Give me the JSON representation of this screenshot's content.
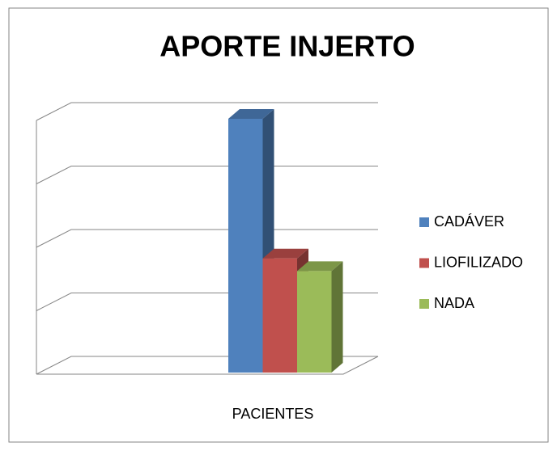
{
  "chart_data": {
    "type": "bar",
    "title": "APORTE INJERTO",
    "categories": [
      "PACIENTES"
    ],
    "series": [
      {
        "name": "CADÁVER",
        "color": "#4f81bd",
        "values": [
          4
        ]
      },
      {
        "name": "LIOFILIZADO",
        "color": "#c0504d",
        "values": [
          1.8
        ]
      },
      {
        "name": "NADA",
        "color": "#9bbb59",
        "values": [
          1.6
        ]
      }
    ],
    "ylim": [
      0,
      4
    ],
    "yticks": [
      0,
      1,
      2,
      3,
      4
    ],
    "grid": true,
    "legend": "right"
  }
}
